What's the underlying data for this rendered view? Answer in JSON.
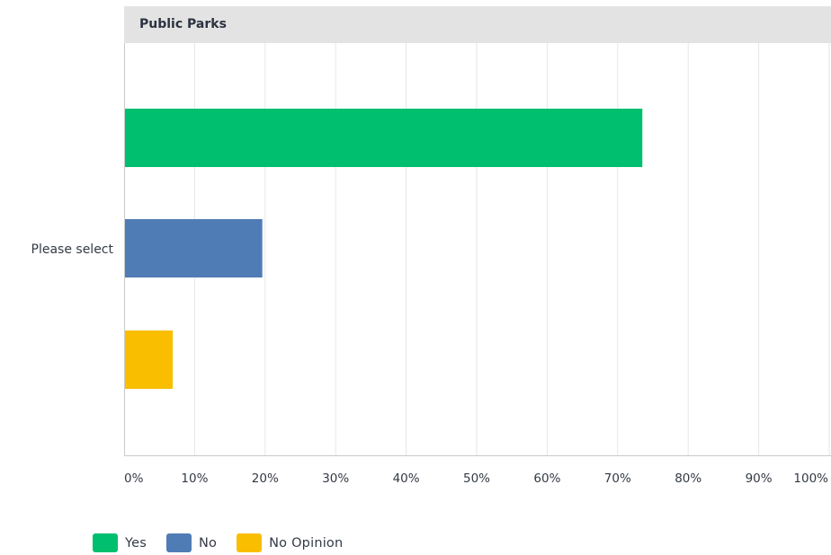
{
  "chart_data": {
    "type": "bar",
    "orientation": "horizontal",
    "title": "Public Parks",
    "category_label": "Please select",
    "x_ticks": [
      "0%",
      "10%",
      "20%",
      "30%",
      "40%",
      "50%",
      "60%",
      "70%",
      "80%",
      "90%",
      "100%"
    ],
    "xlim": [
      0,
      100
    ],
    "grid": true,
    "legend_position": "bottom-left",
    "series": [
      {
        "name": "Yes",
        "value": 73.5,
        "color": "#00bf6f"
      },
      {
        "name": "No",
        "value": 19.6,
        "color": "#507cb6"
      },
      {
        "name": "No Opinion",
        "value": 6.9,
        "color": "#f9be00"
      }
    ]
  }
}
